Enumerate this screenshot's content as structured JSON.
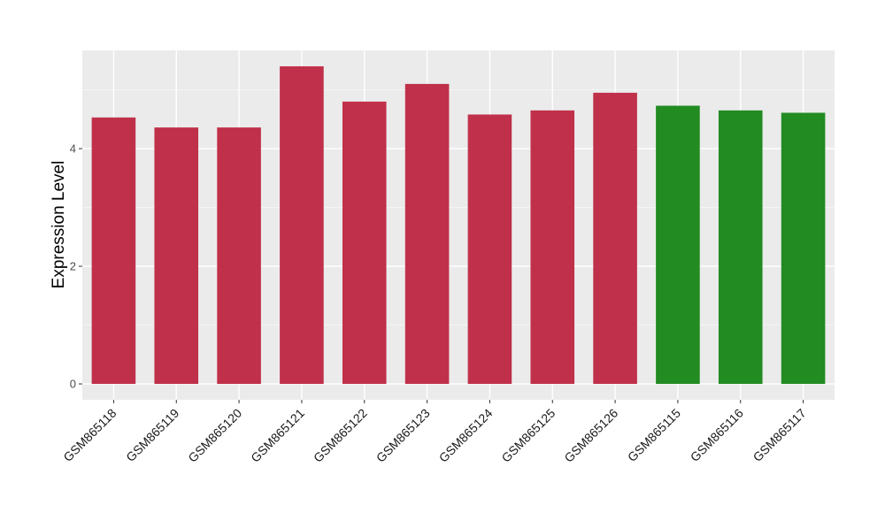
{
  "chart_data": {
    "type": "bar",
    "categories": [
      "GSM865118",
      "GSM865119",
      "GSM865120",
      "GSM865121",
      "GSM865122",
      "GSM865123",
      "GSM865124",
      "GSM865125",
      "GSM865126",
      "GSM865115",
      "GSM865116",
      "GSM865117"
    ],
    "values": [
      4.53,
      4.36,
      4.36,
      5.4,
      4.8,
      5.1,
      4.58,
      4.65,
      4.95,
      4.73,
      4.65,
      4.61
    ],
    "groups": [
      "red",
      "red",
      "red",
      "red",
      "red",
      "red",
      "red",
      "red",
      "red",
      "green",
      "green",
      "green"
    ],
    "colors": {
      "red": "#c0304a",
      "green": "#228b22"
    },
    "ylabel": "Expression Level",
    "xlabel": "",
    "ylim": [
      -0.27,
      5.67
    ],
    "yticks": [
      0,
      2,
      4
    ],
    "ytick_labels": [
      "0",
      "2",
      "4"
    ],
    "grid": true,
    "legend": "none"
  }
}
